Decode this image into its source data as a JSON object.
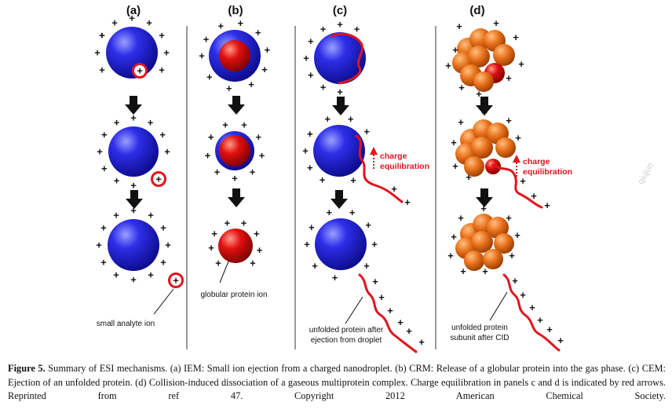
{
  "panels": {
    "a": {
      "label": "(a)",
      "caption": "small analyte ion"
    },
    "b": {
      "label": "(b)",
      "caption": "globular protein ion"
    },
    "c": {
      "label": "(c)",
      "annotation": "charge equilibration",
      "caption_line1": "unfolded protein after",
      "caption_line2": "ejection from droplet"
    },
    "d": {
      "label": "(d)",
      "annotation": "charge equilibration",
      "caption_line1": "unfolded protein",
      "caption_line2": "subunit after CID"
    }
  },
  "charge_symbol": "+",
  "watermark": "qiujun",
  "caption": {
    "label": "Figure 5.",
    "text": " Summary of ESI mechanisms. (a) IEM: Small ion ejection from a charged nanodroplet. (b) CRM: Release of a globular protein into the gas phase. (c) CEM: Ejection of an unfolded protein. (d) Collision-induced dissociation of a gaseous multiprotein complex. Charge equilibration in panels c and d is indicated by red arrows. Reprinted from ref 47. Copyright 2012 American Chemical Society."
  },
  "colors": {
    "droplet": "#1a1ad0",
    "protein": "#e01010",
    "subunit": "#e8701a",
    "arrow": "#111111",
    "chain": "#e0141e"
  }
}
